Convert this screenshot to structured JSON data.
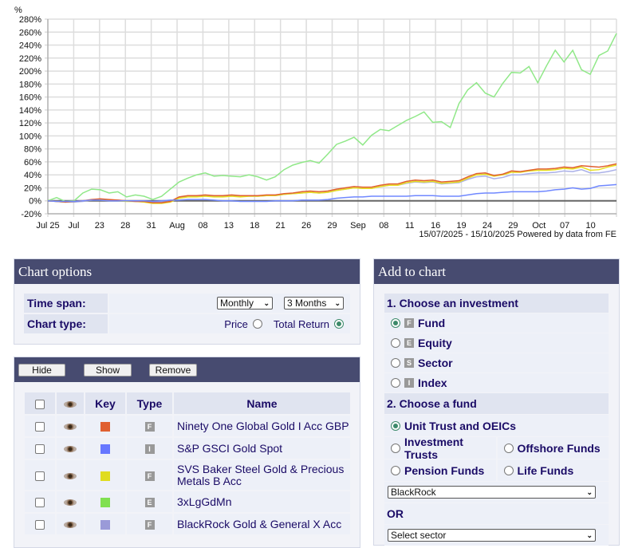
{
  "chart_data": {
    "type": "line",
    "ylabel": "%",
    "ylim": [
      -20,
      280
    ],
    "yticks": [
      -20,
      0,
      20,
      40,
      60,
      80,
      100,
      120,
      140,
      160,
      180,
      200,
      220,
      240,
      260,
      280
    ],
    "ytick_labels": [
      "-20%",
      "0%",
      "20%",
      "40%",
      "60%",
      "80%",
      "100%",
      "120%",
      "140%",
      "160%",
      "180%",
      "200%",
      "220%",
      "240%",
      "260%",
      "280%"
    ],
    "xtick_labels": [
      "Jul 25",
      "Jul",
      "23",
      "28",
      "31",
      "Aug",
      "08",
      "13",
      "18",
      "21",
      "26",
      "29",
      "Sep",
      "08",
      "11",
      "16",
      "19",
      "24",
      "29",
      "Oct",
      "07",
      "10"
    ],
    "x_points": 66,
    "grid": true,
    "footer": "15/07/2025 - 15/10/2025 Powered by data from FE",
    "series": [
      {
        "name": "3xLgGdMn",
        "color": "#90e888",
        "values": [
          0,
          5,
          -1,
          0,
          12,
          18,
          17,
          12,
          14,
          6,
          9,
          7,
          2,
          7,
          18,
          29,
          35,
          40,
          43,
          38,
          39,
          38,
          37,
          40,
          37,
          32,
          37,
          48,
          55,
          59,
          62,
          58,
          72,
          87,
          92,
          98,
          86,
          101,
          110,
          108,
          116,
          124,
          130,
          137,
          121,
          122,
          113,
          150,
          171,
          182,
          166,
          160,
          181,
          198,
          197,
          207,
          182,
          208,
          232,
          214,
          232,
          202,
          195,
          224,
          231,
          258
        ]
      },
      {
        "name": "BlackRock Gold & General X Acc",
        "color": "#aab0e8",
        "values": [
          0,
          -1,
          -2,
          -2,
          -1,
          1,
          2,
          1,
          1,
          0,
          -1,
          -1,
          -2,
          -2,
          -1,
          5,
          7,
          7,
          8,
          7,
          7,
          8,
          7,
          7,
          7,
          8,
          8,
          10,
          11,
          12,
          13,
          12,
          13,
          16,
          18,
          20,
          19,
          19,
          22,
          24,
          24,
          27,
          29,
          28,
          29,
          26,
          27,
          28,
          33,
          37,
          38,
          34,
          36,
          40,
          40,
          42,
          43,
          43,
          44,
          46,
          45,
          48,
          43,
          43,
          45,
          48
        ]
      },
      {
        "name": "SVS Baker Steel Gold & Precious Metals B Acc",
        "color": "#e8e020",
        "values": [
          0,
          -1,
          -2,
          -1,
          0,
          1,
          2,
          1,
          0,
          -1,
          -1,
          -2,
          -4,
          -4,
          -2,
          4,
          6,
          6,
          7,
          6,
          6,
          7,
          6,
          7,
          7,
          8,
          8,
          10,
          11,
          12,
          13,
          12,
          13,
          16,
          18,
          20,
          19,
          19,
          22,
          24,
          24,
          28,
          30,
          29,
          30,
          27,
          28,
          29,
          35,
          40,
          41,
          38,
          40,
          44,
          44,
          46,
          47,
          47,
          48,
          50,
          49,
          52,
          47,
          48,
          52,
          55
        ]
      },
      {
        "name": "Ninety One Global Gold I Acc GBP",
        "color": "#e06030",
        "values": [
          0,
          -1,
          -2,
          -1,
          0,
          2,
          3,
          2,
          1,
          0,
          -1,
          -1,
          -3,
          -3,
          -1,
          6,
          8,
          8,
          9,
          8,
          8,
          9,
          8,
          8,
          8,
          9,
          9,
          11,
          12,
          14,
          15,
          14,
          15,
          18,
          20,
          22,
          21,
          21,
          24,
          26,
          26,
          30,
          32,
          31,
          32,
          29,
          30,
          31,
          37,
          42,
          43,
          39,
          41,
          46,
          45,
          47,
          49,
          49,
          50,
          52,
          51,
          54,
          53,
          52,
          54,
          57
        ]
      },
      {
        "name": "S&P GSCI Gold Spot",
        "color": "#7088ff",
        "values": [
          0,
          -1,
          -1,
          -1,
          0,
          1,
          1,
          0,
          0,
          0,
          0,
          0,
          -1,
          0,
          1,
          1,
          2,
          2,
          2,
          1,
          0,
          0,
          -1,
          -1,
          -1,
          -1,
          0,
          0,
          0,
          1,
          1,
          1,
          2,
          4,
          5,
          6,
          6,
          7,
          7,
          7,
          7,
          7,
          8,
          8,
          8,
          7,
          7,
          7,
          9,
          11,
          12,
          12,
          13,
          14,
          14,
          14,
          14,
          15,
          17,
          18,
          20,
          18,
          19,
          23,
          24,
          25
        ]
      }
    ]
  },
  "chart_options": {
    "title": "Chart options",
    "time_span_label": "Time span:",
    "frequency": "Monthly",
    "period": "3 Months",
    "chart_type_label": "Chart type:",
    "price_label": "Price",
    "total_return_label": "Total Return"
  },
  "holdings": {
    "hide": "Hide",
    "show": "Show",
    "remove": "Remove",
    "col_key": "Key",
    "col_type": "Type",
    "col_name": "Name",
    "rows": [
      {
        "color": "#e06030",
        "type": "F",
        "name": "Ninety One Global Gold I Acc GBP"
      },
      {
        "color": "#6677ff",
        "type": "I",
        "name": "S&P GSCI Gold Spot"
      },
      {
        "color": "#e0dc20",
        "type": "F",
        "name": "SVS Baker Steel Gold & Precious Metals B Acc"
      },
      {
        "color": "#80e050",
        "type": "E",
        "name": "3xLgGdMn"
      },
      {
        "color": "#9a9ad8",
        "type": "F",
        "name": "BlackRock Gold & General X Acc"
      }
    ]
  },
  "add": {
    "title": "Add to chart",
    "step1": "1. Choose an investment",
    "investments": [
      {
        "badge": "F",
        "label": "Fund"
      },
      {
        "badge": "E",
        "label": "Equity"
      },
      {
        "badge": "S",
        "label": "Sector"
      },
      {
        "badge": "I",
        "label": "Index"
      }
    ],
    "step2": "2. Choose a fund",
    "unit": "Unit Trust and OEICs",
    "inv_trusts": "Investment Trusts",
    "offshore": "Offshore Funds",
    "pension": "Pension Funds",
    "life": "Life Funds",
    "provider": "BlackRock",
    "or": "OR",
    "sector": "Select sector"
  }
}
